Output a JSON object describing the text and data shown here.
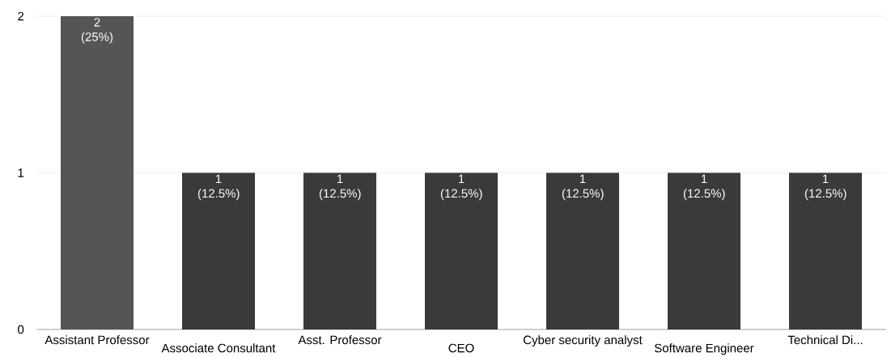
{
  "chart_data": {
    "type": "bar",
    "categories": [
      "Assistant Professor",
      "Associate Consultant",
      "Asst. Professor",
      "CEO",
      "Cyber security analyst",
      "Software Engineer",
      "Technical Di..."
    ],
    "values": [
      2,
      1,
      1,
      1,
      1,
      1,
      1
    ],
    "colors": [
      "#555555",
      "#3a3a3a",
      "#3a3a3a",
      "#3a3a3a",
      "#3a3a3a",
      "#3a3a3a",
      "#3a3a3a"
    ],
    "value_labels": [
      "2 (25%)",
      "1 (12.5%)",
      "1 (12.5%)",
      "1 (12.5%)",
      "1 (12.5%)",
      "1 (12.5%)",
      "1 (12.5%)"
    ],
    "ylim": [
      0,
      2
    ],
    "yticks": [
      0,
      1,
      2
    ],
    "grid": "y"
  }
}
